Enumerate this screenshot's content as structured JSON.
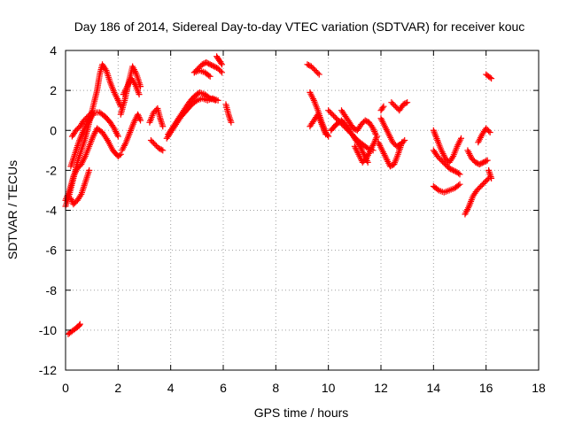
{
  "chart_data": {
    "type": "scatter",
    "title": "Day 186 of 2014, Sidereal Day-to-day VTEC variation (SDTVAR) for receiver kouc",
    "xlabel": "GPS time / hours",
    "ylabel": "SDTVAR / TECUs",
    "xlim": [
      0,
      18
    ],
    "ylim": [
      -12,
      4
    ],
    "x_ticks": [
      0,
      2,
      4,
      6,
      8,
      10,
      12,
      14,
      16,
      18
    ],
    "y_ticks": [
      -12,
      -10,
      -8,
      -6,
      -4,
      -2,
      0,
      2,
      4
    ],
    "grid": true,
    "marker": "plus",
    "color": "#ff0000",
    "series": [
      {
        "name": "t1",
        "x": [
          0.0,
          0.15,
          0.3,
          0.45,
          0.6,
          0.75,
          0.9,
          1.05,
          1.2,
          1.3,
          1.4,
          1.55,
          1.7,
          1.85,
          2.0,
          2.1
        ],
        "y": [
          -3.8,
          -3.2,
          -2.4,
          -1.6,
          -1.0,
          -0.4,
          0.4,
          1.2,
          2.0,
          2.8,
          3.3,
          3.0,
          2.4,
          1.9,
          1.5,
          1.2
        ]
      },
      {
        "name": "t2",
        "x": [
          0.0,
          0.15,
          0.3,
          0.45,
          0.6,
          0.75,
          0.9,
          1.05,
          1.2,
          1.4,
          1.6,
          1.8,
          2.0,
          2.1
        ],
        "y": [
          -3.5,
          -3.0,
          -2.3,
          -1.9,
          -1.7,
          -1.3,
          -0.8,
          -0.3,
          0.1,
          -0.1,
          -0.5,
          -1.0,
          -1.3,
          -1.2
        ]
      },
      {
        "name": "t3",
        "x": [
          0.2,
          0.35,
          0.5,
          0.65,
          0.8,
          0.95,
          1.1,
          1.3,
          1.5,
          1.7,
          1.85,
          2.0
        ],
        "y": [
          -1.8,
          -1.2,
          -0.6,
          -0.1,
          0.3,
          0.6,
          0.9,
          0.9,
          0.7,
          0.4,
          0.1,
          -0.3
        ]
      },
      {
        "name": "t4",
        "x": [
          0.2,
          0.3,
          0.45,
          0.6,
          0.75,
          0.9
        ],
        "y": [
          -3.4,
          -3.7,
          -3.5,
          -3.2,
          -2.6,
          -2.0
        ]
      },
      {
        "name": "t5",
        "x": [
          0.25,
          0.4,
          0.55,
          0.7,
          0.85,
          1.0
        ],
        "y": [
          -0.3,
          0.0,
          0.2,
          0.5,
          0.7,
          0.9
        ]
      },
      {
        "name": "t6",
        "x": [
          0.1,
          0.2,
          0.3,
          0.4,
          0.5,
          0.55
        ],
        "y": [
          -10.2,
          -10.1,
          -10.0,
          -9.9,
          -9.8,
          -9.7
        ]
      },
      {
        "name": "t7",
        "x": [
          2.1,
          2.25,
          2.4,
          2.55,
          2.7,
          2.85
        ],
        "y": [
          0.8,
          1.5,
          2.4,
          3.2,
          2.8,
          2.2
        ]
      },
      {
        "name": "t8",
        "x": [
          2.15,
          2.3,
          2.45,
          2.6,
          2.75,
          2.85
        ],
        "y": [
          -1.0,
          -0.6,
          -0.1,
          0.4,
          0.8,
          0.5
        ]
      },
      {
        "name": "t9",
        "x": [
          2.2,
          2.35,
          2.5,
          2.65,
          2.8
        ],
        "y": [
          1.8,
          2.2,
          2.6,
          2.3,
          1.8
        ]
      },
      {
        "name": "t10",
        "x": [
          3.2,
          3.35,
          3.5,
          3.6,
          3.7
        ],
        "y": [
          0.4,
          0.9,
          1.1,
          0.6,
          0.2
        ]
      },
      {
        "name": "t11",
        "x": [
          3.25,
          3.4,
          3.55,
          3.7
        ],
        "y": [
          -0.5,
          -0.7,
          -0.9,
          -1.0
        ]
      },
      {
        "name": "t12",
        "x": [
          3.85,
          4.0,
          4.2,
          4.4,
          4.6,
          4.8,
          5.0,
          5.2,
          5.4,
          5.6,
          5.8
        ],
        "y": [
          -0.4,
          -0.1,
          0.3,
          0.7,
          1.0,
          1.3,
          1.5,
          1.6,
          1.5,
          1.6,
          1.5
        ]
      },
      {
        "name": "t13",
        "x": [
          3.9,
          4.1,
          4.3,
          4.5,
          4.7,
          4.9,
          5.1,
          5.3,
          5.5,
          5.7
        ],
        "y": [
          -0.2,
          0.2,
          0.6,
          1.0,
          1.4,
          1.7,
          1.9,
          1.8,
          1.6,
          1.5
        ]
      },
      {
        "name": "t14",
        "x": [
          4.9,
          5.05,
          5.2,
          5.35,
          5.5,
          5.65,
          5.8,
          5.95
        ],
        "y": [
          2.9,
          3.1,
          3.3,
          3.4,
          3.3,
          3.2,
          3.1,
          2.9
        ]
      },
      {
        "name": "t15",
        "x": [
          4.9,
          5.1,
          5.3,
          5.5
        ],
        "y": [
          2.9,
          3.0,
          2.9,
          2.7
        ]
      },
      {
        "name": "t16",
        "x": [
          5.75,
          5.85,
          5.95
        ],
        "y": [
          3.7,
          3.5,
          3.3
        ]
      },
      {
        "name": "t17",
        "x": [
          6.1,
          6.2,
          6.3
        ],
        "y": [
          1.3,
          0.8,
          0.4
        ]
      },
      {
        "name": "t18",
        "x": [
          9.2,
          9.35,
          9.5,
          9.65
        ],
        "y": [
          3.3,
          3.2,
          3.0,
          2.8
        ]
      },
      {
        "name": "t19",
        "x": [
          9.3,
          9.45,
          9.6,
          9.75,
          9.9,
          10.0
        ],
        "y": [
          1.9,
          1.5,
          1.0,
          0.4,
          -0.1,
          -0.3
        ]
      },
      {
        "name": "t20",
        "x": [
          9.3,
          9.45,
          9.6,
          9.75,
          9.9
        ],
        "y": [
          0.2,
          0.5,
          0.8,
          0.3,
          -0.2
        ]
      },
      {
        "name": "t21",
        "x": [
          10.0,
          10.15,
          10.3,
          10.45,
          10.6,
          10.75,
          10.9,
          11.05,
          11.2,
          11.35,
          11.5
        ],
        "y": [
          1.0,
          0.8,
          0.6,
          0.4,
          0.2,
          0.0,
          -0.2,
          -0.5,
          -0.8,
          -1.2,
          -1.6
        ]
      },
      {
        "name": "t22",
        "x": [
          10.1,
          10.3,
          10.5,
          10.7,
          10.9,
          11.1,
          11.3,
          11.5,
          11.7
        ],
        "y": [
          0.0,
          0.3,
          0.5,
          0.2,
          -0.2,
          -0.5,
          -0.7,
          -0.9,
          -1.0
        ]
      },
      {
        "name": "t23",
        "x": [
          10.5,
          10.65,
          10.8,
          10.95,
          11.1,
          11.25,
          11.4,
          11.55,
          11.7,
          11.8
        ],
        "y": [
          1.0,
          0.7,
          0.4,
          0.1,
          0.0,
          0.3,
          0.5,
          0.4,
          0.1,
          -0.2
        ]
      },
      {
        "name": "t24",
        "x": [
          11.0,
          11.15,
          11.3,
          11.45,
          11.6,
          11.75,
          11.85
        ],
        "y": [
          -0.8,
          -1.2,
          -1.6,
          -1.4,
          -1.0,
          -0.6,
          -0.3
        ]
      },
      {
        "name": "t25",
        "x": [
          11.9,
          12.05,
          12.2,
          12.35,
          12.5,
          12.65,
          12.8
        ],
        "y": [
          -0.6,
          -1.0,
          -1.4,
          -1.8,
          -1.7,
          -1.2,
          -0.6
        ]
      },
      {
        "name": "t26",
        "x": [
          12.0,
          12.15,
          12.3,
          12.45,
          12.6,
          12.75,
          12.9
        ],
        "y": [
          0.6,
          0.2,
          -0.2,
          -0.6,
          -0.8,
          -0.7,
          -0.5
        ]
      },
      {
        "name": "t27",
        "x": [
          12.4,
          12.55,
          12.7,
          12.85,
          13.0
        ],
        "y": [
          1.4,
          1.2,
          1.0,
          1.3,
          1.4
        ]
      },
      {
        "name": "t28",
        "x": [
          12.0,
          12.1
        ],
        "y": [
          1.0,
          1.2
        ]
      },
      {
        "name": "t29",
        "x": [
          14.0,
          14.15,
          14.3,
          14.45,
          14.6,
          14.75,
          14.9,
          15.05
        ],
        "y": [
          0.0,
          -0.5,
          -1.0,
          -1.4,
          -1.6,
          -1.3,
          -0.8,
          -0.4
        ]
      },
      {
        "name": "t30",
        "x": [
          14.0,
          14.15,
          14.3,
          14.45,
          14.6,
          14.75,
          14.9,
          15.0
        ],
        "y": [
          -1.0,
          -1.3,
          -1.5,
          -1.7,
          -1.9,
          -2.0,
          -2.1,
          -2.2
        ]
      },
      {
        "name": "t31",
        "x": [
          14.0,
          14.2,
          14.4,
          14.6,
          14.8,
          15.0
        ],
        "y": [
          -2.8,
          -3.0,
          -3.1,
          -3.0,
          -2.9,
          -2.7
        ]
      },
      {
        "name": "t32",
        "x": [
          15.2,
          15.35,
          15.5,
          15.65,
          15.8,
          15.95,
          16.1
        ],
        "y": [
          -4.2,
          -3.8,
          -3.3,
          -3.0,
          -2.8,
          -2.6,
          -2.4
        ]
      },
      {
        "name": "t33",
        "x": [
          15.3,
          15.45,
          15.6,
          15.75,
          15.9,
          16.05
        ],
        "y": [
          -1.0,
          -1.4,
          -1.6,
          -1.7,
          -1.6,
          -1.5
        ]
      },
      {
        "name": "t34",
        "x": [
          15.7,
          15.85,
          16.0,
          16.15
        ],
        "y": [
          -0.6,
          -0.2,
          0.1,
          -0.1
        ]
      },
      {
        "name": "t35",
        "x": [
          16.1,
          16.2
        ],
        "y": [
          -2.0,
          -2.4
        ]
      },
      {
        "name": "t36",
        "x": [
          16.0,
          16.1,
          16.2
        ],
        "y": [
          2.8,
          2.7,
          2.6
        ]
      }
    ]
  }
}
